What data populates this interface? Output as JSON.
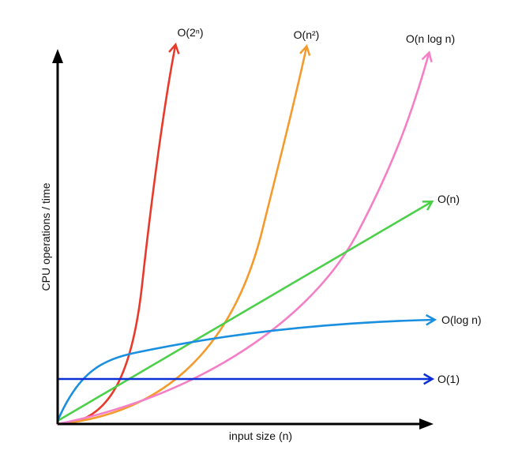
{
  "chart_data": {
    "type": "line",
    "xlabel": "input size (n)",
    "ylabel": "CPU operations / time",
    "series": [
      {
        "name": "O(2ⁿ)",
        "color": "#e8392a",
        "shape": "exp2"
      },
      {
        "name": "O(n²)",
        "color": "#f59a2c",
        "shape": "quadratic"
      },
      {
        "name": "O(n log n)",
        "color": "#f57fc7",
        "shape": "nlogn"
      },
      {
        "name": "O(n)",
        "color": "#4cd04a",
        "shape": "linear"
      },
      {
        "name": "O(log n)",
        "color": "#1a8fe0",
        "shape": "log"
      },
      {
        "name": "O(1)",
        "color": "#0a2fd6",
        "shape": "constant"
      }
    ],
    "axis_color": "#000000",
    "grid": false,
    "ticks": false
  }
}
